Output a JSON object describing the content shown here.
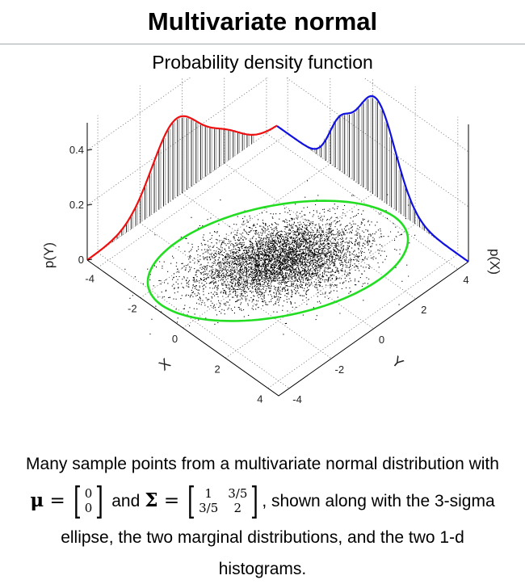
{
  "infobox": {
    "title": "Multivariate normal"
  },
  "figure": {
    "title": "Probability density function"
  },
  "chart_data": {
    "type": "scatter",
    "title": "Probability density function",
    "xlabel": "X",
    "ylabel": "Y",
    "zlabel_left": "p(Y)",
    "zlabel_right": "p(X)",
    "x_ticks": [
      "-4",
      "-2",
      "0",
      "2",
      "4"
    ],
    "y_ticks": [
      "-4",
      "-2",
      "0",
      "2",
      "4"
    ],
    "z_ticks": [
      "0",
      "0.2",
      "0.4"
    ],
    "xlim": [
      -4.5,
      4.5
    ],
    "ylim": [
      -4.5,
      4.5
    ],
    "zlim": [
      0,
      0.5
    ],
    "mean": [
      0,
      0
    ],
    "covariance": [
      [
        1,
        0.6
      ],
      [
        0.6,
        2
      ]
    ],
    "ellipse": {
      "sigma": 3,
      "color": "#22dd22"
    },
    "marginal_x": {
      "axis": "p(X)",
      "color": "#1010e0",
      "peak": 0.4
    },
    "marginal_y": {
      "axis": "p(Y)",
      "color": "#ee1010",
      "peak": 0.28
    },
    "point_color": "#000000",
    "grid": true
  },
  "caption": {
    "line1": "Many sample points from a multivariate normal distribution with",
    "mu_label": "μ",
    "mu_values": [
      "0",
      "0"
    ],
    "and": "and",
    "sigma_label": "Σ",
    "sigma_values": [
      "1",
      "3/5",
      "3/5",
      "2"
    ],
    "line2_tail": ", shown along with the 3-sigma",
    "line3": "ellipse, the two marginal distributions, and the two 1-d",
    "line4": "histograms."
  }
}
